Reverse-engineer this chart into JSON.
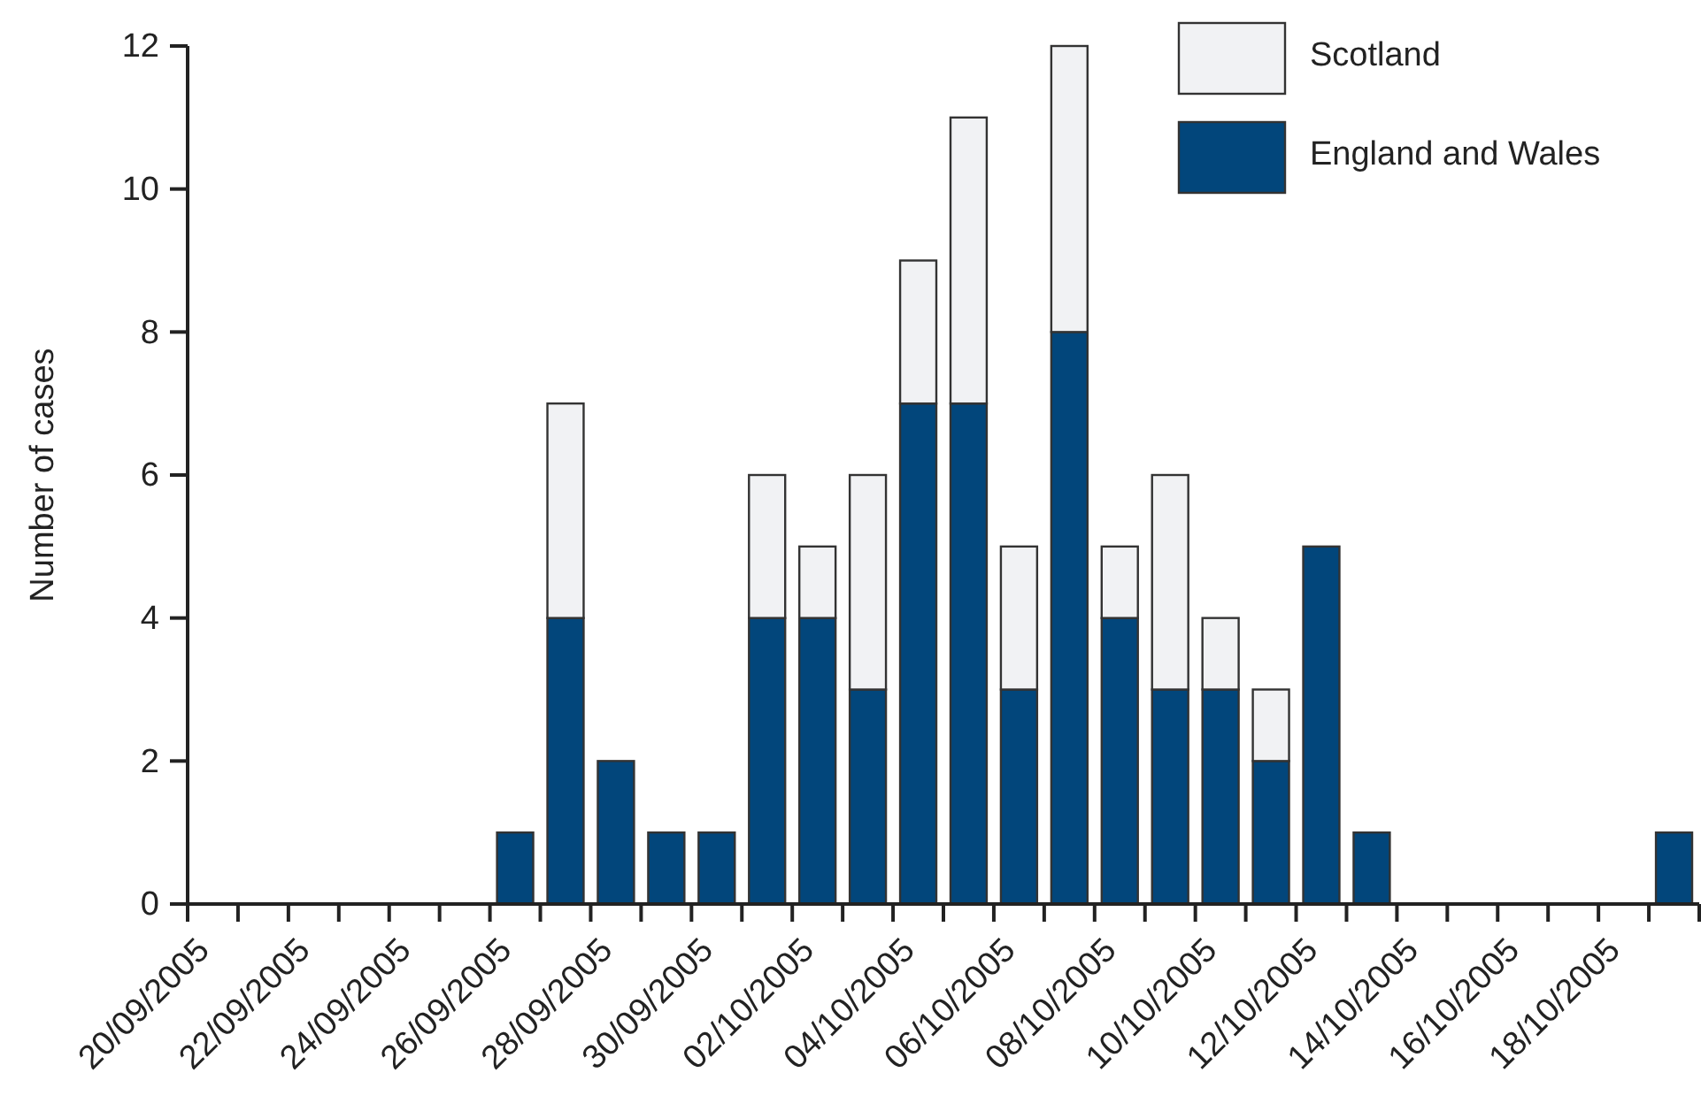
{
  "chart_data": {
    "type": "bar",
    "stacked": true,
    "ylabel": "Number of cases",
    "x": [
      "2005-09-20T12:00",
      "2005-09-21T12:00",
      "2005-09-22T12:00",
      "2005-09-23T12:00",
      "2005-09-24T12:00",
      "2005-09-25T12:00",
      "2005-09-26T12:00",
      "2005-09-27T12:00",
      "2005-09-28T12:00",
      "2005-09-29T12:00",
      "2005-09-30T12:00",
      "2005-10-01T12:00",
      "2005-10-02T12:00",
      "2005-10-03T12:00",
      "2005-10-04T12:00",
      "2005-10-05T12:00",
      "2005-10-06T12:00",
      "2005-10-07T12:00",
      "2005-10-08T12:00",
      "2005-10-09T12:00",
      "2005-10-10T12:00",
      "2005-10-11T12:00",
      "2005-10-12T12:00",
      "2005-10-13T12:00",
      "2005-10-14T12:00",
      "2005-10-15T12:00",
      "2005-10-16T12:00",
      "2005-10-17T12:00",
      "2005-10-18T12:00",
      "2005-10-19T12:00"
    ],
    "series": [
      {
        "name": "England and Wales",
        "color": "#02467b",
        "values": [
          0,
          0,
          0,
          0,
          0,
          0,
          1,
          4,
          2,
          1,
          1,
          4,
          4,
          3,
          7,
          7,
          3,
          8,
          4,
          3,
          3,
          2,
          5,
          1,
          0,
          0,
          0,
          0,
          0,
          1
        ]
      },
      {
        "name": "Scotland",
        "color": "#f1f2f4",
        "values": [
          0,
          0,
          0,
          0,
          0,
          0,
          0,
          3,
          0,
          0,
          0,
          2,
          1,
          3,
          2,
          4,
          2,
          4,
          1,
          3,
          1,
          1,
          0,
          0,
          0,
          0,
          0,
          0,
          0,
          0
        ]
      }
    ],
    "xlim": [
      "2005-09-20",
      "2005-10-20"
    ],
    "xticks": [
      {
        "value": "2005-09-20",
        "label": "20/09/2005"
      },
      {
        "value": "2005-09-21",
        "label": null
      },
      {
        "value": "2005-09-22",
        "label": "22/09/2005"
      },
      {
        "value": "2005-09-23",
        "label": null
      },
      {
        "value": "2005-09-24",
        "label": "24/09/2005"
      },
      {
        "value": "2005-09-25",
        "label": null
      },
      {
        "value": "2005-09-26",
        "label": "26/09/2005"
      },
      {
        "value": "2005-09-27",
        "label": null
      },
      {
        "value": "2005-09-28",
        "label": "28/09/2005"
      },
      {
        "value": "2005-09-29",
        "label": null
      },
      {
        "value": "2005-09-30",
        "label": "30/09/2005"
      },
      {
        "value": "2005-10-01",
        "label": null
      },
      {
        "value": "2005-10-02",
        "label": "02/10/2005"
      },
      {
        "value": "2005-10-03",
        "label": null
      },
      {
        "value": "2005-10-04",
        "label": "04/10/2005"
      },
      {
        "value": "2005-10-05",
        "label": null
      },
      {
        "value": "2005-10-06",
        "label": "06/10/2005"
      },
      {
        "value": "2005-10-07",
        "label": null
      },
      {
        "value": "2005-10-08",
        "label": "08/10/2005"
      },
      {
        "value": "2005-10-09",
        "label": null
      },
      {
        "value": "2005-10-10",
        "label": "10/10/2005"
      },
      {
        "value": "2005-10-11",
        "label": null
      },
      {
        "value": "2005-10-12",
        "label": "12/10/2005"
      },
      {
        "value": "2005-10-13",
        "label": null
      },
      {
        "value": "2005-10-14",
        "label": "14/10/2005"
      },
      {
        "value": "2005-10-15",
        "label": null
      },
      {
        "value": "2005-10-16",
        "label": "16/10/2005"
      },
      {
        "value": "2005-10-17",
        "label": null
      },
      {
        "value": "2005-10-18",
        "label": "18/10/2005"
      },
      {
        "value": "2005-10-19",
        "label": null
      },
      {
        "value": "2005-10-20",
        "label": null
      }
    ],
    "ylim": [
      0,
      12
    ],
    "yticks": [
      0,
      2,
      4,
      6,
      8,
      10,
      12
    ],
    "grid": false,
    "legend": "top right"
  }
}
